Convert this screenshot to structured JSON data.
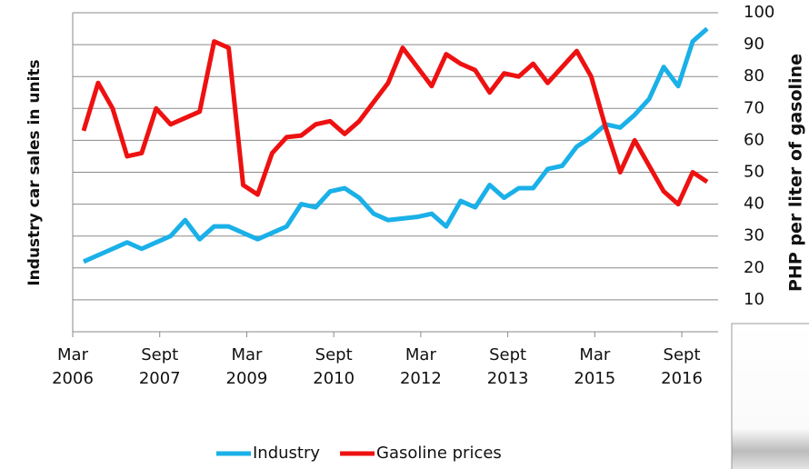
{
  "chart_data": {
    "type": "line",
    "y_axis_label": "Industry car sales in units",
    "y2_axis_label": "PHP per liter of gasoline",
    "categories": [
      "Mar 2006",
      null,
      null,
      null,
      null,
      null,
      "Sept 2007",
      null,
      null,
      null,
      null,
      null,
      "Mar 2009",
      null,
      null,
      null,
      null,
      null,
      "Sept 2010",
      null,
      null,
      null,
      null,
      null,
      "Mar 2012",
      null,
      null,
      null,
      null,
      null,
      "Sept 2013",
      null,
      null,
      null,
      null,
      null,
      "Mar 2015",
      null,
      null,
      null,
      null,
      null,
      "Sept 2016",
      null
    ],
    "series": [
      {
        "name": "Industry",
        "color": "#1ab0e8",
        "values": [
          22,
          24,
          26,
          28,
          26,
          28,
          30,
          35,
          29,
          33,
          33,
          31,
          29,
          31,
          33,
          40,
          39,
          44,
          45,
          42,
          37,
          35,
          35.5,
          36,
          37,
          33,
          41,
          39,
          46,
          42,
          45,
          45,
          51,
          52,
          58,
          61,
          65,
          64,
          68,
          73,
          83,
          77,
          91,
          95
        ]
      },
      {
        "name": "Gasoline prices",
        "color": "#ee1111",
        "values": [
          63,
          78,
          70,
          55,
          56,
          70,
          65,
          67,
          69,
          91,
          89,
          46,
          43,
          56,
          61,
          61.5,
          65,
          66,
          62,
          66,
          72,
          78,
          89,
          83,
          77,
          87,
          84,
          82,
          75,
          81,
          80,
          84,
          78,
          83,
          88,
          80,
          64,
          50,
          60,
          52,
          44,
          40,
          50,
          47
        ]
      }
    ],
    "ylim": [
      0,
      100
    ],
    "yticks": [
      0,
      10,
      20,
      30,
      40,
      50,
      60,
      70,
      80,
      90,
      100
    ],
    "grid": true,
    "legend": "bottom"
  }
}
